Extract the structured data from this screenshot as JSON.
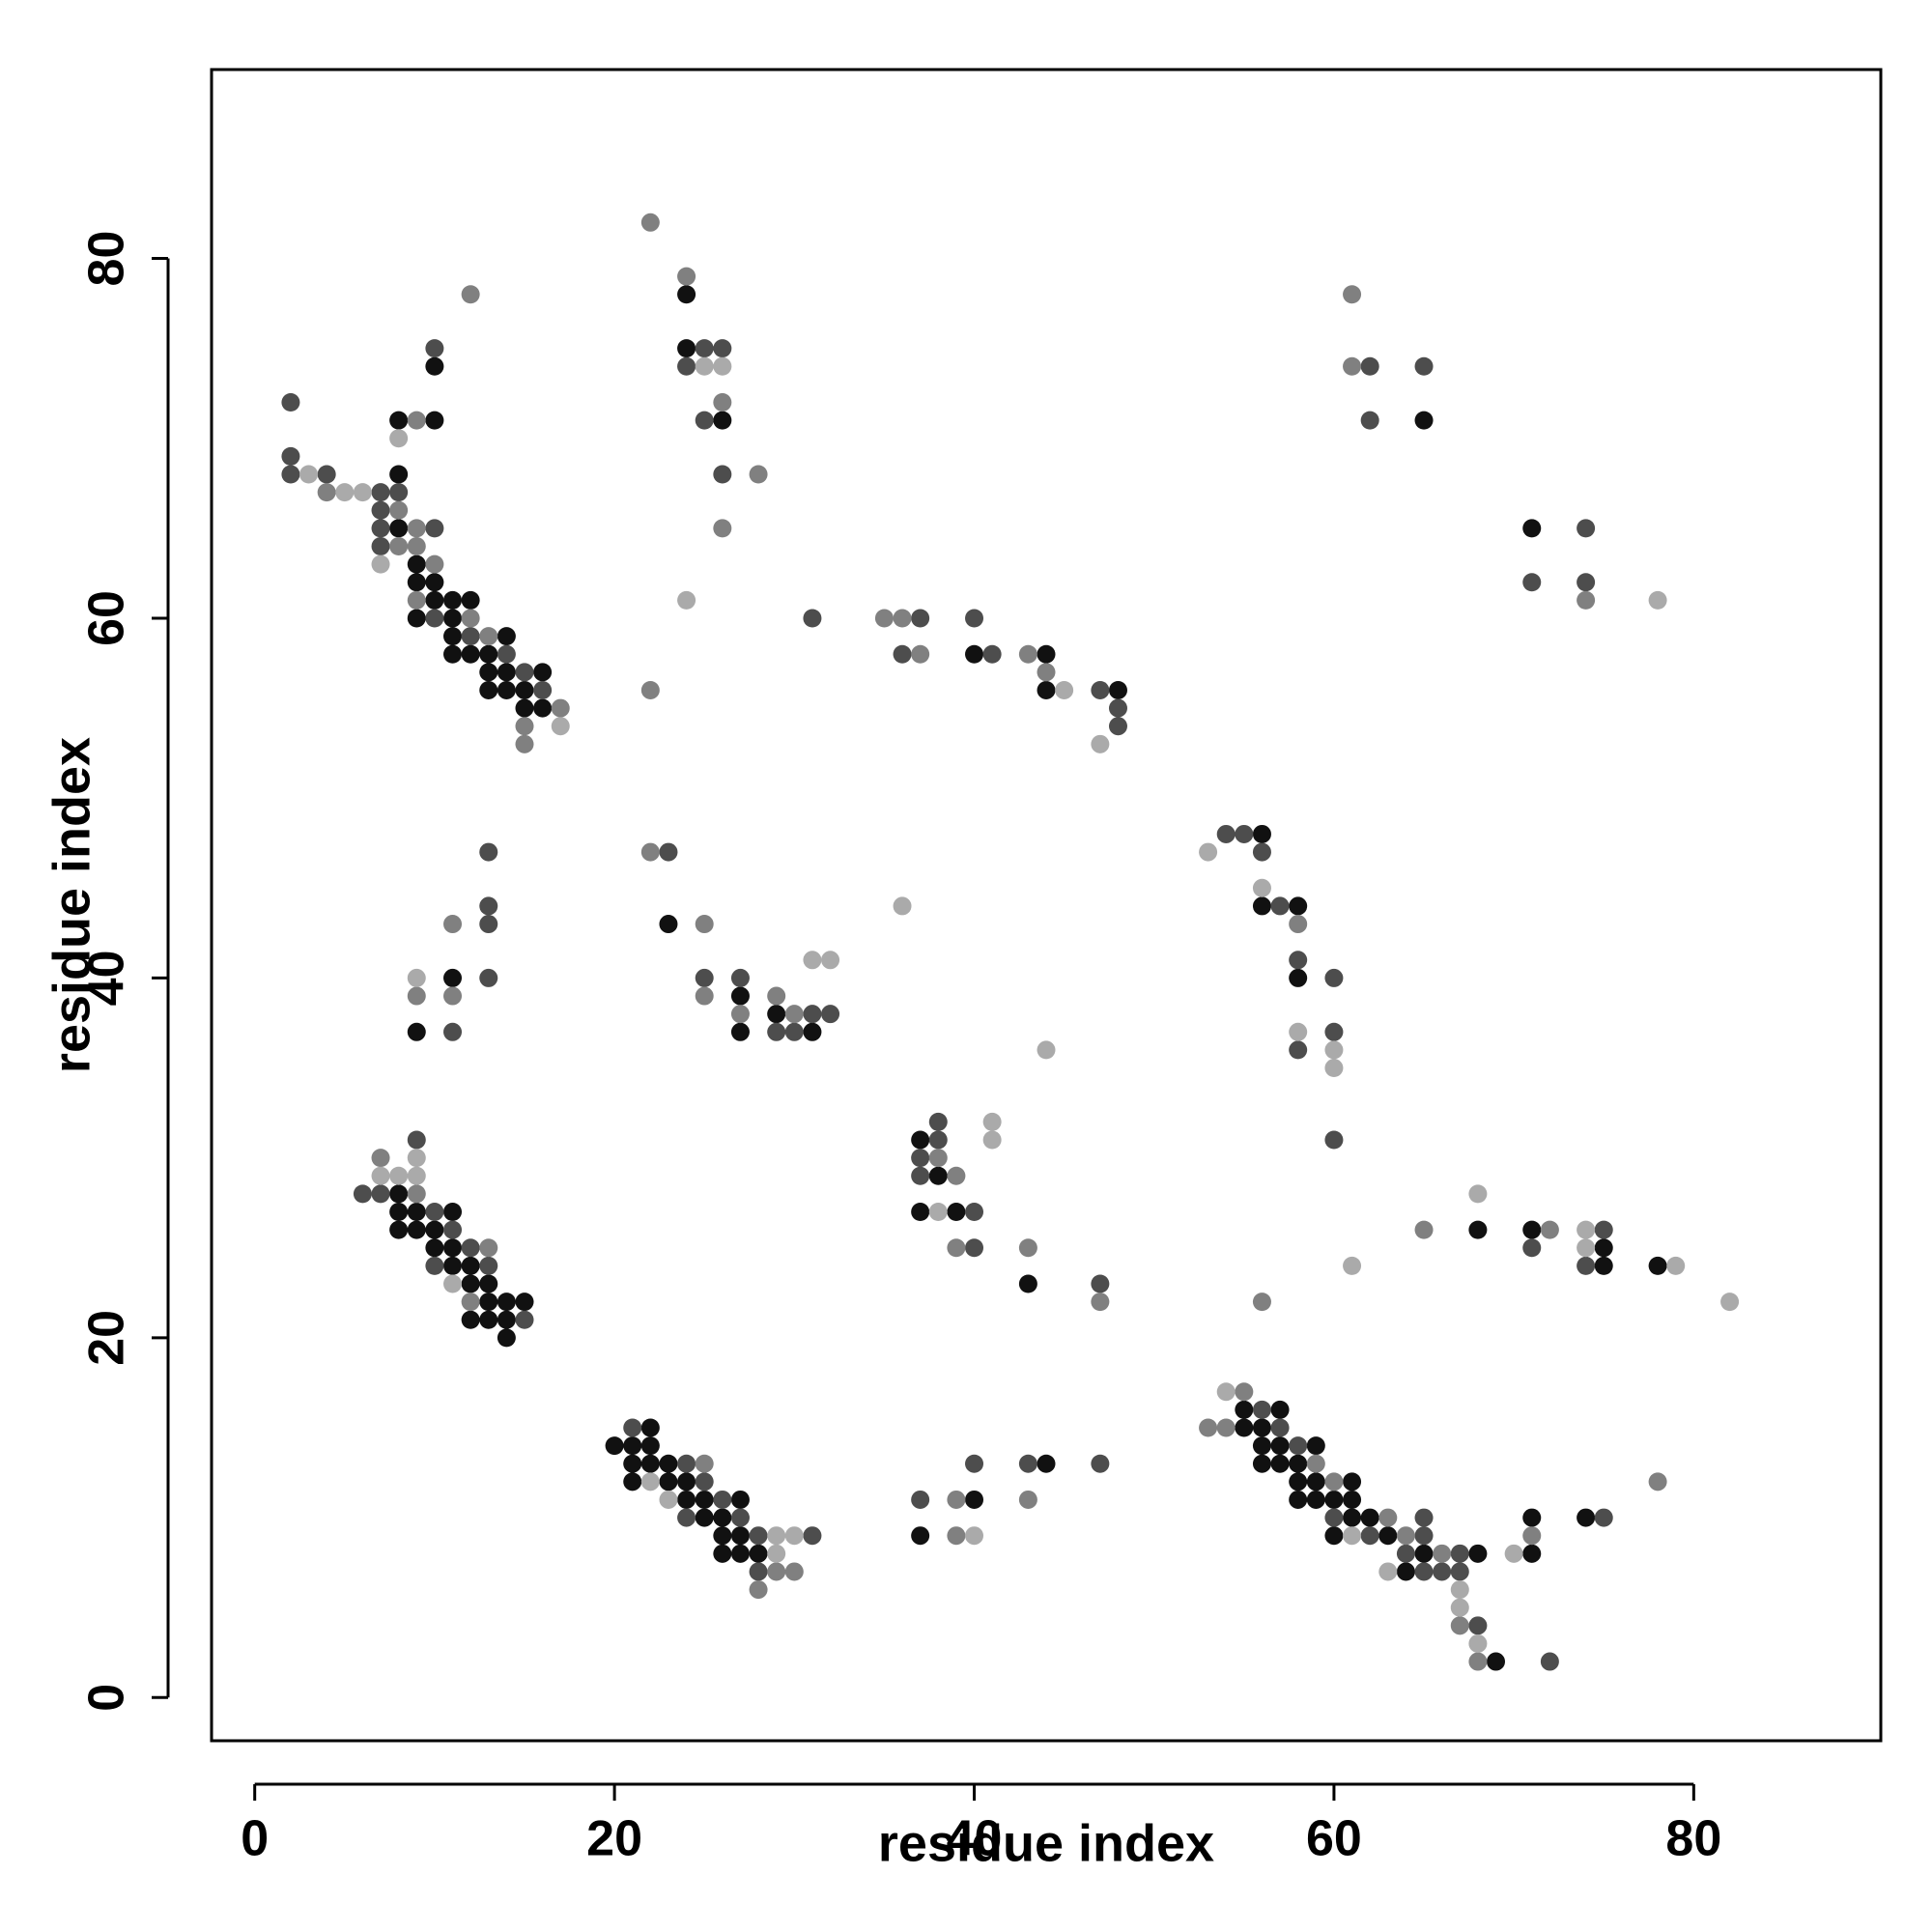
{
  "chart_data": {
    "type": "scatter",
    "x_label": "residue index",
    "y_label": "residue index",
    "xlim": [
      -2.4,
      90.4
    ],
    "ylim": [
      -2.4,
      90.5
    ],
    "xticks": [
      0,
      20,
      40,
      60,
      80
    ],
    "yticks": [
      0,
      20,
      40,
      60,
      80
    ],
    "series": [
      {
        "color": "#111111",
        "x": [
          8,
          8,
          8,
          9,
          9,
          9,
          10,
          10,
          10,
          10,
          11,
          11,
          11,
          11,
          12,
          12,
          13,
          13,
          13,
          14,
          14,
          14,
          15,
          15,
          16,
          16,
          24,
          24,
          26,
          40,
          44,
          44,
          48,
          65,
          71,
          11,
          9,
          23,
          27,
          27,
          29,
          31,
          56,
          56,
          58,
          58,
          8,
          8,
          9,
          11,
          8,
          9,
          10,
          10,
          11,
          11,
          12,
          12,
          13,
          13,
          14,
          15,
          12,
          13,
          14,
          14,
          37,
          38,
          37,
          39,
          43,
          68,
          71,
          75,
          75,
          78,
          22,
          20,
          21,
          22,
          21,
          22,
          23,
          21,
          23,
          24,
          24,
          25,
          27,
          25,
          26,
          26,
          27,
          26,
          27,
          28,
          44,
          40,
          37,
          55,
          57,
          55,
          56,
          56,
          57,
          59,
          56,
          57,
          58,
          58,
          59,
          61,
          58,
          59,
          60,
          61,
          61,
          62,
          60,
          63,
          65,
          68,
          64,
          69,
          71,
          71,
          74
        ],
        "y": [
          71,
          68,
          65,
          63,
          62,
          60,
          74,
          71,
          62,
          61,
          61,
          60,
          59,
          58,
          61,
          58,
          58,
          57,
          56,
          59,
          57,
          56,
          56,
          55,
          57,
          55,
          78,
          75,
          71,
          58,
          58,
          56,
          56,
          71,
          65,
          40,
          37,
          43,
          39,
          37,
          38,
          37,
          48,
          44,
          44,
          40,
          28,
          27,
          27,
          27,
          26,
          26,
          26,
          25,
          25,
          24,
          24,
          23,
          23,
          22,
          22,
          22,
          21,
          21,
          21,
          20,
          31,
          29,
          27,
          27,
          23,
          26,
          26,
          25,
          24,
          24,
          15,
          14,
          14,
          14,
          13,
          13,
          13,
          12,
          12,
          12,
          11,
          11,
          11,
          10,
          10,
          9,
          9,
          8,
          8,
          8,
          13,
          11,
          9,
          16,
          16,
          15,
          15,
          14,
          14,
          14,
          13,
          13,
          13,
          12,
          12,
          12,
          11,
          11,
          11,
          11,
          10,
          10,
          9,
          9,
          8,
          8,
          7,
          2,
          8,
          10,
          10
        ]
      },
      {
        "color": "#4d4d4d",
        "x": [
          2,
          2,
          2,
          4,
          7,
          7,
          7,
          7,
          8,
          10,
          10,
          10,
          12,
          14,
          15,
          16,
          24,
          25,
          26,
          25,
          26,
          31,
          37,
          36,
          40,
          41,
          47,
          48,
          48,
          62,
          62,
          65,
          74,
          71,
          74,
          13,
          13,
          13,
          13,
          11,
          23,
          25,
          27,
          31,
          32,
          29,
          30,
          54,
          55,
          56,
          57,
          58,
          60,
          58,
          60,
          60,
          9,
          6,
          7,
          10,
          11,
          12,
          10,
          13,
          15,
          38,
          38,
          37,
          37,
          40,
          40,
          47,
          71,
          75,
          74,
          21,
          24,
          25,
          26,
          24,
          27,
          28,
          31,
          28,
          40,
          43,
          47,
          37,
          56,
          57,
          58,
          60,
          65,
          62,
          65,
          64,
          67,
          65,
          66,
          67,
          68,
          72,
          75
        ],
        "y": [
          72,
          69,
          68,
          68,
          67,
          66,
          65,
          64,
          67,
          75,
          65,
          60,
          59,
          58,
          57,
          56,
          74,
          75,
          75,
          71,
          68,
          60,
          60,
          58,
          60,
          58,
          56,
          55,
          54,
          74,
          71,
          74,
          65,
          62,
          62,
          47,
          44,
          43,
          40,
          37,
          47,
          40,
          40,
          38,
          38,
          37,
          37,
          48,
          48,
          47,
          44,
          41,
          40,
          36,
          37,
          31,
          31,
          28,
          28,
          27,
          26,
          25,
          24,
          24,
          21,
          32,
          31,
          30,
          29,
          27,
          25,
          23,
          25,
          26,
          24,
          15,
          13,
          12,
          11,
          10,
          10,
          9,
          9,
          7,
          13,
          13,
          13,
          11,
          16,
          15,
          14,
          10,
          10,
          9,
          9,
          8,
          8,
          7,
          7,
          7,
          4,
          2,
          10
        ]
      },
      {
        "color": "#808080",
        "x": [
          4,
          8,
          8,
          9,
          9,
          9,
          9,
          10,
          12,
          12,
          13,
          15,
          15,
          17,
          22,
          24,
          26,
          28,
          26,
          22,
          35,
          36,
          37,
          43,
          44,
          61,
          61,
          74,
          11,
          9,
          11,
          22,
          25,
          25,
          27,
          29,
          30,
          58,
          7,
          9,
          13,
          12,
          38,
          39,
          39,
          43,
          47,
          56,
          65,
          72,
          25,
          29,
          30,
          28,
          39,
          43,
          39,
          55,
          53,
          54,
          59,
          60,
          63,
          64,
          66,
          67,
          68,
          71,
          78
        ],
        "y": [
          67,
          66,
          64,
          71,
          65,
          64,
          61,
          63,
          78,
          60,
          59,
          54,
          53,
          55,
          82,
          79,
          72,
          68,
          65,
          56,
          60,
          60,
          58,
          58,
          57,
          78,
          74,
          61,
          43,
          39,
          39,
          47,
          43,
          39,
          38,
          39,
          38,
          43,
          30,
          28,
          25,
          22,
          30,
          29,
          25,
          25,
          22,
          22,
          26,
          26,
          13,
          7,
          7,
          6,
          11,
          11,
          9,
          17,
          15,
          15,
          13,
          12,
          10,
          9,
          8,
          4,
          2,
          9,
          12
        ]
      },
      {
        "color": "#aaaaaa",
        "x": [
          3,
          5,
          6,
          7,
          8,
          17,
          25,
          26,
          24,
          45,
          47,
          78,
          9,
          31,
          32,
          36,
          44,
          53,
          56,
          58,
          60,
          60,
          9,
          7,
          8,
          9,
          11,
          41,
          41,
          38,
          61,
          68,
          74,
          74,
          79,
          82,
          22,
          23,
          29,
          30,
          29,
          40,
          54,
          61,
          63,
          67,
          67,
          68,
          70
        ],
        "y": [
          68,
          67,
          67,
          63,
          70,
          54,
          74,
          74,
          61,
          56,
          53,
          61,
          40,
          41,
          41,
          44,
          36,
          47,
          45,
          37,
          36,
          35,
          30,
          29,
          29,
          29,
          23,
          32,
          31,
          27,
          24,
          28,
          26,
          25,
          24,
          22,
          12,
          11,
          9,
          9,
          8,
          9,
          17,
          9,
          7,
          6,
          5,
          3,
          8
        ]
      }
    ]
  }
}
